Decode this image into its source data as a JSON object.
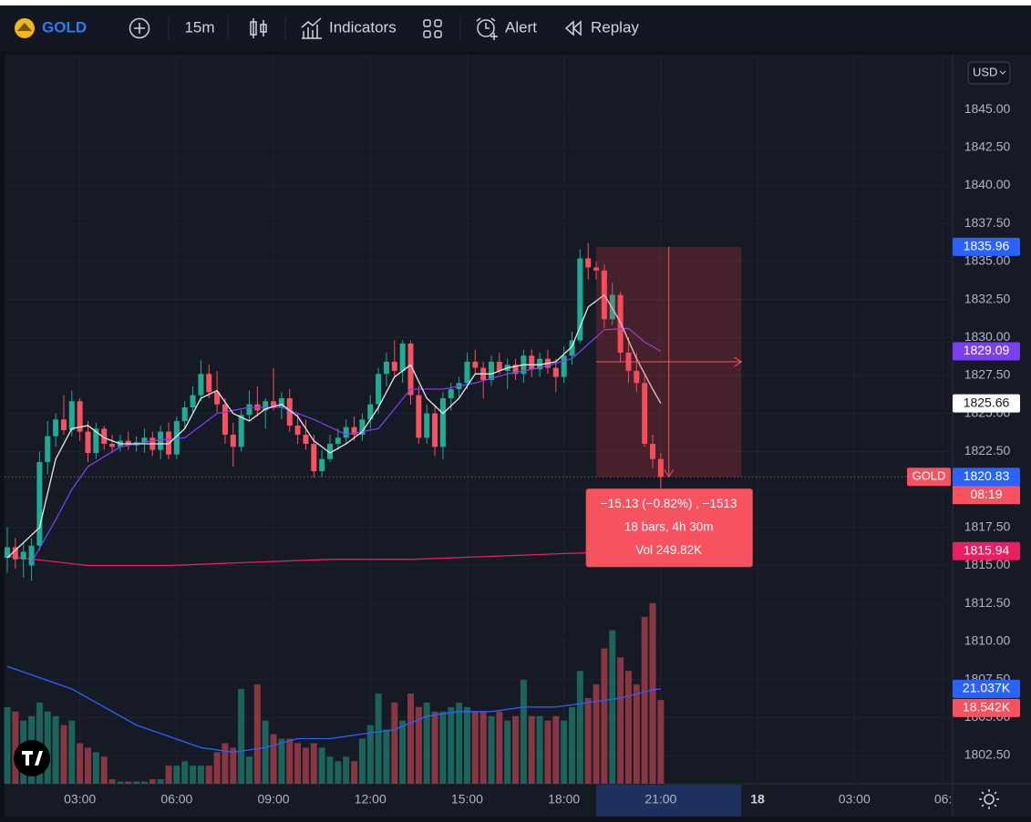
{
  "toolbar": {
    "symbol": "GOLD",
    "interval": "15m",
    "indicators": "Indicators",
    "alert": "Alert",
    "replay": "Replay"
  },
  "chart": {
    "currency": "USD",
    "ylim": [
      1800.64,
      1848.6
    ],
    "yticks": [
      {
        "value": 1845,
        "label": "1845.00"
      },
      {
        "value": 1842.5,
        "label": "1842.50"
      },
      {
        "value": 1840,
        "label": "1840.00"
      },
      {
        "value": 1837.5,
        "label": "1837.50"
      },
      {
        "value": 1835,
        "label": "1835.00"
      },
      {
        "value": 1832.5,
        "label": "1832.50"
      },
      {
        "value": 1830,
        "label": "1830.00"
      },
      {
        "value": 1827.5,
        "label": "1827.50"
      },
      {
        "value": 1825,
        "label": "1825.00"
      },
      {
        "value": 1822.5,
        "label": "1822.50"
      },
      {
        "value": 1820,
        "label": "1820.00"
      },
      {
        "value": 1817.5,
        "label": "1817.50"
      },
      {
        "value": 1815,
        "label": "1815.00"
      },
      {
        "value": 1812.5,
        "label": "1812.50"
      },
      {
        "value": 1810,
        "label": "1810.00"
      },
      {
        "value": 1807.5,
        "label": "1807.50"
      },
      {
        "value": 1805,
        "label": "1805.00"
      },
      {
        "value": 1802.5,
        "label": "1802.50"
      }
    ],
    "xticks": [
      {
        "value": 9,
        "label": "03:00"
      },
      {
        "value": 21,
        "label": "06:00"
      },
      {
        "value": 33,
        "label": "09:00"
      },
      {
        "value": 45,
        "label": "12:00"
      },
      {
        "value": 57,
        "label": "15:00"
      },
      {
        "value": 69,
        "label": "18:00"
      },
      {
        "value": 81,
        "label": "21:00"
      },
      {
        "value": 93,
        "label": "18"
      },
      {
        "value": 105,
        "label": "03:00"
      },
      {
        "value": 116,
        "label": "06:"
      }
    ],
    "candles": [
      [
        1815.5,
        1817.5,
        1814.5,
        1816.2
      ],
      [
        1816.2,
        1816.8,
        1814.8,
        1815.4
      ],
      [
        1815.4,
        1816.5,
        1814.2,
        1815.9
      ],
      [
        1815.0,
        1816.8,
        1814.0,
        1816.3
      ],
      [
        1816.3,
        1822.5,
        1816.0,
        1821.8
      ],
      [
        1821.8,
        1824.5,
        1821.0,
        1823.5
      ],
      [
        1823.5,
        1825.0,
        1822.8,
        1824.6
      ],
      [
        1824.6,
        1826.2,
        1823.6,
        1823.9
      ],
      [
        1823.9,
        1826.5,
        1823.5,
        1825.8
      ],
      [
        1825.8,
        1826.0,
        1823.2,
        1823.8
      ],
      [
        1823.8,
        1824.5,
        1821.8,
        1822.4
      ],
      [
        1822.4,
        1824.4,
        1822.0,
        1824.0
      ],
      [
        1824.0,
        1824.2,
        1822.6,
        1823.0
      ],
      [
        1823.0,
        1823.6,
        1822.4,
        1822.8
      ],
      [
        1822.8,
        1823.6,
        1822.5,
        1823.2
      ],
      [
        1823.2,
        1823.8,
        1822.6,
        1822.9
      ],
      [
        1822.9,
        1823.5,
        1822.5,
        1823.1
      ],
      [
        1823.1,
        1824.0,
        1822.4,
        1823.4
      ],
      [
        1823.4,
        1823.8,
        1822.2,
        1822.6
      ],
      [
        1822.6,
        1824.2,
        1822.0,
        1823.8
      ],
      [
        1823.8,
        1824.4,
        1822.0,
        1822.3
      ],
      [
        1822.3,
        1824.8,
        1822.0,
        1824.5
      ],
      [
        1824.5,
        1825.8,
        1824.0,
        1825.4
      ],
      [
        1825.4,
        1826.8,
        1825.0,
        1826.2
      ],
      [
        1826.2,
        1828.5,
        1825.8,
        1827.6
      ],
      [
        1827.6,
        1828.2,
        1826.0,
        1826.4
      ],
      [
        1826.4,
        1827.8,
        1825.0,
        1825.6
      ],
      [
        1825.6,
        1826.0,
        1823.0,
        1823.6
      ],
      [
        1823.6,
        1824.4,
        1821.5,
        1822.8
      ],
      [
        1822.8,
        1825.2,
        1822.5,
        1824.9
      ],
      [
        1824.9,
        1826.5,
        1824.5,
        1825.6
      ],
      [
        1825.6,
        1826.8,
        1824.8,
        1825.2
      ],
      [
        1825.2,
        1826.0,
        1824.0,
        1825.8
      ],
      [
        1825.8,
        1828.0,
        1825.2,
        1825.4
      ],
      [
        1825.4,
        1826.4,
        1824.6,
        1826.0
      ],
      [
        1826.0,
        1826.6,
        1823.8,
        1824.2
      ],
      [
        1824.2,
        1825.0,
        1823.0,
        1823.6
      ],
      [
        1823.6,
        1824.6,
        1822.6,
        1823.0
      ],
      [
        1823.0,
        1823.6,
        1820.8,
        1821.2
      ],
      [
        1821.2,
        1822.6,
        1820.8,
        1822.0
      ],
      [
        1822.0,
        1823.6,
        1821.8,
        1823.0
      ],
      [
        1823.0,
        1824.0,
        1822.6,
        1823.4
      ],
      [
        1823.4,
        1824.6,
        1823.0,
        1824.1
      ],
      [
        1824.1,
        1824.8,
        1823.2,
        1823.6
      ],
      [
        1823.6,
        1825.0,
        1823.2,
        1824.6
      ],
      [
        1824.6,
        1826.2,
        1824.0,
        1825.6
      ],
      [
        1825.6,
        1828.0,
        1825.0,
        1827.6
      ],
      [
        1827.6,
        1829.0,
        1826.8,
        1828.4
      ],
      [
        1828.4,
        1829.8,
        1827.4,
        1827.8
      ],
      [
        1827.8,
        1829.8,
        1827.0,
        1829.6
      ],
      [
        1829.6,
        1829.8,
        1825.6,
        1826.2
      ],
      [
        1826.2,
        1826.8,
        1823.0,
        1823.4
      ],
      [
        1823.4,
        1825.6,
        1823.0,
        1825.0
      ],
      [
        1825.0,
        1825.6,
        1822.2,
        1822.8
      ],
      [
        1822.8,
        1826.4,
        1822.0,
        1826.0
      ],
      [
        1826.0,
        1827.0,
        1825.2,
        1826.6
      ],
      [
        1826.6,
        1827.4,
        1826.0,
        1827.0
      ],
      [
        1827.0,
        1829.0,
        1826.6,
        1828.4
      ],
      [
        1828.4,
        1829.2,
        1827.6,
        1828.0
      ],
      [
        1828.0,
        1828.4,
        1826.0,
        1827.2
      ],
      [
        1827.2,
        1828.8,
        1826.8,
        1828.4
      ],
      [
        1828.4,
        1829.0,
        1827.6,
        1827.8
      ],
      [
        1827.8,
        1828.6,
        1826.6,
        1828.2
      ],
      [
        1828.2,
        1828.6,
        1827.2,
        1827.6
      ],
      [
        1827.6,
        1829.2,
        1827.0,
        1828.8
      ],
      [
        1828.8,
        1829.2,
        1827.4,
        1827.9
      ],
      [
        1827.9,
        1829.0,
        1827.4,
        1828.6
      ],
      [
        1828.6,
        1829.2,
        1827.6,
        1828.0
      ],
      [
        1828.0,
        1828.6,
        1826.4,
        1827.4
      ],
      [
        1827.4,
        1829.4,
        1827.0,
        1828.8
      ],
      [
        1828.8,
        1830.4,
        1828.2,
        1829.8
      ],
      [
        1829.8,
        1835.8,
        1829.6,
        1835.2
      ],
      [
        1835.2,
        1836.2,
        1833.8,
        1834.6
      ],
      [
        1834.6,
        1835.0,
        1833.8,
        1834.4
      ],
      [
        1834.4,
        1834.8,
        1830.6,
        1831.2
      ],
      [
        1831.2,
        1833.6,
        1830.8,
        1832.8
      ],
      [
        1832.8,
        1833.0,
        1828.4,
        1829.0
      ],
      [
        1829.0,
        1830.0,
        1827.0,
        1827.8
      ],
      [
        1827.8,
        1829.0,
        1826.4,
        1827.0
      ],
      [
        1827.0,
        1827.6,
        1822.8,
        1823.0
      ],
      [
        1823.0,
        1823.6,
        1821.4,
        1822.0
      ],
      [
        1822.0,
        1822.4,
        1820.0,
        1820.83
      ]
    ],
    "volume": [
      17,
      16,
      14,
      15,
      18,
      16,
      15,
      13,
      14,
      9,
      8,
      7,
      6,
      1,
      0.5,
      0.5,
      0.5,
      0.5,
      1,
      1,
      4,
      4,
      5,
      4,
      4,
      4,
      7,
      9,
      8,
      21,
      6,
      22,
      14,
      11,
      10,
      10,
      9,
      8,
      9,
      8,
      6,
      5,
      6,
      5,
      10,
      13,
      20,
      12,
      18,
      14,
      20,
      17,
      18,
      16,
      16,
      17,
      18,
      17,
      16,
      16,
      15,
      16,
      14,
      15,
      23,
      15,
      15,
      14,
      15,
      14,
      17,
      25,
      19,
      22,
      30,
      34,
      28,
      25,
      22,
      37,
      40,
      18.542
    ],
    "ma_fast": {
      "color": "#e8e8e8",
      "x": [
        0,
        4,
        6,
        8,
        10,
        12,
        14,
        18,
        20,
        22,
        24,
        26,
        28,
        30,
        32,
        34,
        36,
        38,
        40,
        42,
        44,
        46,
        48,
        50,
        52,
        54,
        56,
        58,
        60,
        62,
        64,
        66,
        68,
        70,
        72,
        74,
        76,
        78,
        80,
        81
      ],
      "values": [
        1815.5,
        1817.5,
        1822,
        1824,
        1824.2,
        1823.4,
        1823,
        1823,
        1823,
        1824,
        1826,
        1826.5,
        1825,
        1824.5,
        1825.3,
        1825.6,
        1824.8,
        1823.2,
        1822.4,
        1823,
        1823.8,
        1825.4,
        1827.4,
        1828.2,
        1826,
        1825,
        1826,
        1827.6,
        1827.6,
        1828,
        1828.2,
        1828.2,
        1828.4,
        1829.4,
        1832,
        1832.8,
        1831,
        1828.6,
        1826.6,
        1825.66
      ]
    },
    "ma_slow": {
      "color": "#7b3ff2",
      "x": [
        3,
        6,
        8,
        10,
        14,
        18,
        22,
        26,
        30,
        34,
        38,
        42,
        46,
        50,
        54,
        58,
        62,
        66,
        70,
        74,
        77,
        79,
        81
      ],
      "values": [
        1815.2,
        1818,
        1820,
        1821.5,
        1822.8,
        1823.2,
        1823.4,
        1825,
        1825.4,
        1825.4,
        1824.6,
        1823.6,
        1824,
        1826.6,
        1826.6,
        1827,
        1827.6,
        1828,
        1828.6,
        1830.5,
        1830.6,
        1829.7,
        1829.09
      ]
    },
    "ma_long": {
      "color": "#e91e63",
      "x": [
        0,
        10,
        20,
        30,
        40,
        50,
        60,
        70,
        81
      ],
      "values": [
        1815.6,
        1815.0,
        1815.0,
        1815.2,
        1815.4,
        1815.4,
        1815.6,
        1815.8,
        1815.94
      ]
    },
    "volume_ma": {
      "color": "#2962ff",
      "x": [
        0,
        8,
        16,
        24,
        28,
        32,
        36,
        40,
        44,
        48,
        52,
        56,
        60,
        64,
        68,
        72,
        76,
        80,
        81
      ],
      "values": [
        26,
        21,
        13,
        8,
        7,
        8,
        10,
        10,
        11,
        12,
        15,
        16,
        16,
        17,
        17,
        18,
        19,
        20.8,
        21.037
      ]
    },
    "volume_ma_label": {
      "value": 21.037,
      "label": "21.037K"
    },
    "volume_label": {
      "value": 18.542,
      "label": "18.542K"
    },
    "last_price": {
      "symbol": "GOLD",
      "countdown": "08:19"
    },
    "measure": {
      "start_bar": 73,
      "end_bar": 91,
      "start_price": 1835.96,
      "lines": [
        "−15.13 (−0.82%) , −1513",
        "18 bars, 4h 30m",
        "Vol 249.82K"
      ]
    }
  }
}
